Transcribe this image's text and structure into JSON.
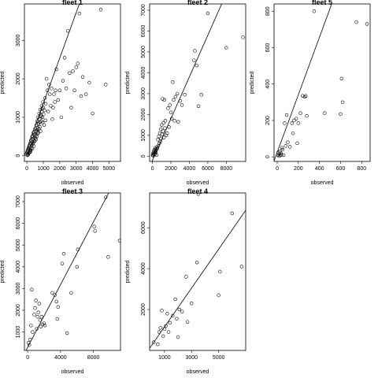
{
  "chart_data": [
    {
      "type": "scatter",
      "title": "fleet 1",
      "xlabel": "observed",
      "ylabel": "predicted",
      "xlim": [
        -150,
        5700
      ],
      "ylim": [
        -150,
        3950
      ],
      "xticks": [
        0,
        1000,
        2000,
        3000,
        4000,
        5000
      ],
      "yticks": [
        0,
        1000,
        2000,
        3000
      ],
      "fit_line": {
        "slope": 1.18,
        "intercept": 180
      },
      "points": [
        [
          20,
          10
        ],
        [
          40,
          50
        ],
        [
          60,
          120
        ],
        [
          80,
          30
        ],
        [
          100,
          200
        ],
        [
          120,
          80
        ],
        [
          150,
          250
        ],
        [
          180,
          150
        ],
        [
          200,
          300
        ],
        [
          220,
          100
        ],
        [
          250,
          400
        ],
        [
          280,
          200
        ],
        [
          300,
          350
        ],
        [
          320,
          500
        ],
        [
          350,
          300
        ],
        [
          380,
          450
        ],
        [
          400,
          600
        ],
        [
          420,
          250
        ],
        [
          450,
          550
        ],
        [
          480,
          380
        ],
        [
          500,
          700
        ],
        [
          520,
          450
        ],
        [
          550,
          650
        ],
        [
          580,
          800
        ],
        [
          600,
          500
        ],
        [
          620,
          900
        ],
        [
          650,
          720
        ],
        [
          680,
          1000
        ],
        [
          700,
          600
        ],
        [
          720,
          850
        ],
        [
          750,
          1100
        ],
        [
          780,
          950
        ],
        [
          800,
          750
        ],
        [
          820,
          1200
        ],
        [
          850,
          1050
        ],
        [
          880,
          900
        ],
        [
          900,
          1300
        ],
        [
          920,
          1150
        ],
        [
          950,
          1000
        ],
        [
          980,
          1400
        ],
        [
          1000,
          1250
        ],
        [
          1050,
          800
        ],
        [
          1100,
          1500
        ],
        [
          1150,
          1350
        ],
        [
          1200,
          2000
        ],
        [
          1250,
          1700
        ],
        [
          1300,
          1150
        ],
        [
          1350,
          1850
        ],
        [
          1400,
          1600
        ],
        [
          1450,
          1300
        ],
        [
          1500,
          1750
        ],
        [
          1550,
          950
        ],
        [
          1600,
          1250
        ],
        [
          1650,
          1600
        ],
        [
          1700,
          1400
        ],
        [
          1750,
          1700
        ],
        [
          1800,
          2250
        ],
        [
          1900,
          1450
        ],
        [
          2000,
          1700
        ],
        [
          2100,
          1000
        ],
        [
          2200,
          1950
        ],
        [
          2300,
          2550
        ],
        [
          2400,
          1750
        ],
        [
          2500,
          3250
        ],
        [
          2600,
          2150
        ],
        [
          2700,
          1250
        ],
        [
          2800,
          2200
        ],
        [
          2900,
          1700
        ],
        [
          3000,
          2300
        ],
        [
          3100,
          2400
        ],
        [
          3200,
          3700
        ],
        [
          3300,
          1550
        ],
        [
          3400,
          2050
        ],
        [
          3600,
          1600
        ],
        [
          3800,
          1900
        ],
        [
          4000,
          1100
        ],
        [
          4500,
          3800
        ],
        [
          4800,
          1850
        ],
        [
          30,
          80
        ],
        [
          60,
          20
        ],
        [
          90,
          160
        ],
        [
          110,
          60
        ],
        [
          140,
          180
        ],
        [
          170,
          90
        ],
        [
          190,
          220
        ],
        [
          230,
          140
        ],
        [
          260,
          320
        ],
        [
          290,
          260
        ],
        [
          330,
          180
        ],
        [
          360,
          420
        ],
        [
          390,
          340
        ],
        [
          430,
          380
        ],
        [
          460,
          480
        ],
        [
          490,
          560
        ],
        [
          530,
          520
        ],
        [
          560,
          420
        ],
        [
          590,
          620
        ],
        [
          630,
          680
        ],
        [
          660,
          580
        ],
        [
          700,
          820
        ],
        [
          740,
          700
        ],
        [
          790,
          880
        ],
        [
          830,
          640
        ],
        [
          870,
          1020
        ],
        [
          930,
          1220
        ],
        [
          960,
          860
        ],
        [
          1020,
          1080
        ],
        [
          1080,
          1180
        ],
        [
          1130,
          920
        ]
      ]
    },
    {
      "type": "scatter",
      "title": "fleet 2",
      "xlabel": "observed",
      "ylabel": "predicted",
      "xlim": [
        -300,
        10100
      ],
      "ylim": [
        -250,
        7300
      ],
      "xticks": [
        0,
        2000,
        4000,
        6000,
        8000
      ],
      "yticks": [
        0,
        1000,
        2000,
        3000,
        4000,
        5000,
        6000,
        7000
      ],
      "fit_line": {
        "slope": 1.0,
        "intercept": -200
      },
      "points": [
        [
          30,
          50
        ],
        [
          60,
          120
        ],
        [
          90,
          30
        ],
        [
          120,
          200
        ],
        [
          150,
          80
        ],
        [
          180,
          260
        ],
        [
          210,
          150
        ],
        [
          240,
          320
        ],
        [
          270,
          100
        ],
        [
          300,
          400
        ],
        [
          330,
          220
        ],
        [
          360,
          180
        ],
        [
          390,
          280
        ],
        [
          420,
          350
        ],
        [
          450,
          60
        ],
        [
          500,
          450
        ],
        [
          550,
          380
        ],
        [
          600,
          800
        ],
        [
          650,
          500
        ],
        [
          700,
          950
        ],
        [
          750,
          620
        ],
        [
          800,
          1100
        ],
        [
          850,
          700
        ],
        [
          900,
          1300
        ],
        [
          950,
          850
        ],
        [
          1000,
          1500
        ],
        [
          1050,
          1050
        ],
        [
          1100,
          2750
        ],
        [
          1150,
          1200
        ],
        [
          1200,
          1600
        ],
        [
          1250,
          900
        ],
        [
          1300,
          2700
        ],
        [
          1350,
          1350
        ],
        [
          1400,
          1700
        ],
        [
          1500,
          1000
        ],
        [
          1600,
          1100
        ],
        [
          1700,
          2300
        ],
        [
          1800,
          1400
        ],
        [
          1900,
          2450
        ],
        [
          2000,
          2100
        ],
        [
          2100,
          1800
        ],
        [
          2200,
          3550
        ],
        [
          2300,
          2700
        ],
        [
          2400,
          1700
        ],
        [
          2500,
          2850
        ],
        [
          2700,
          3000
        ],
        [
          2800,
          1650
        ],
        [
          3000,
          2650
        ],
        [
          3200,
          2450
        ],
        [
          3500,
          2950
        ],
        [
          4500,
          4600
        ],
        [
          4600,
          5050
        ],
        [
          4800,
          4350
        ],
        [
          5000,
          2400
        ],
        [
          5300,
          2950
        ],
        [
          6000,
          6850
        ],
        [
          8000,
          5200
        ],
        [
          9800,
          5700
        ]
      ]
    },
    {
      "type": "scatter",
      "title": "fleet 5",
      "xlabel": "observed",
      "ylabel": "predicted",
      "xlim": [
        -30,
        880
      ],
      "ylim": [
        -25,
        840
      ],
      "xticks": [
        0,
        200,
        400,
        600,
        800
      ],
      "yticks": [
        0,
        200,
        400,
        600,
        800
      ],
      "fit_line": {
        "slope": 1.58,
        "intercept": 25
      },
      "points": [
        [
          5,
          10
        ],
        [
          10,
          25
        ],
        [
          15,
          5
        ],
        [
          20,
          15
        ],
        [
          25,
          30
        ],
        [
          30,
          8
        ],
        [
          35,
          20
        ],
        [
          40,
          12
        ],
        [
          45,
          50
        ],
        [
          50,
          40
        ],
        [
          60,
          10
        ],
        [
          70,
          185
        ],
        [
          80,
          60
        ],
        [
          90,
          230
        ],
        [
          100,
          80
        ],
        [
          120,
          55
        ],
        [
          140,
          185
        ],
        [
          150,
          130
        ],
        [
          160,
          200
        ],
        [
          180,
          210
        ],
        [
          190,
          75
        ],
        [
          200,
          185
        ],
        [
          220,
          240
        ],
        [
          240,
          335
        ],
        [
          260,
          330
        ],
        [
          270,
          335
        ],
        [
          280,
          225
        ],
        [
          350,
          800
        ],
        [
          450,
          240
        ],
        [
          600,
          235
        ],
        [
          610,
          430
        ],
        [
          620,
          300
        ],
        [
          750,
          740
        ],
        [
          850,
          730
        ]
      ]
    },
    {
      "type": "scatter",
      "title": "fleet 3",
      "xlabel": "observed",
      "ylabel": "predicted",
      "xlim": [
        -400,
        11300
      ],
      "ylim": [
        150,
        7400
      ],
      "xticks": [
        0,
        4000,
        8000
      ],
      "yticks": [
        1000,
        2000,
        3000,
        4000,
        5000,
        6000,
        7000
      ],
      "fit_line": {
        "slope": 0.72,
        "intercept": 300
      },
      "points": [
        [
          100,
          500
        ],
        [
          200,
          400
        ],
        [
          300,
          650
        ],
        [
          400,
          1300
        ],
        [
          500,
          2950
        ],
        [
          600,
          1000
        ],
        [
          800,
          1800
        ],
        [
          900,
          2100
        ],
        [
          1000,
          2450
        ],
        [
          1100,
          1150
        ],
        [
          1200,
          1700
        ],
        [
          1300,
          1900
        ],
        [
          1400,
          2300
        ],
        [
          1500,
          1550
        ],
        [
          1600,
          1250
        ],
        [
          1700,
          1700
        ],
        [
          1800,
          1350
        ],
        [
          2000,
          1400
        ],
        [
          2100,
          1300
        ],
        [
          3000,
          2800
        ],
        [
          3300,
          2700
        ],
        [
          3500,
          2400
        ],
        [
          3600,
          1600
        ],
        [
          3700,
          2150
        ],
        [
          4200,
          4150
        ],
        [
          4400,
          4600
        ],
        [
          4800,
          950
        ],
        [
          5300,
          2800
        ],
        [
          6000,
          4000
        ],
        [
          6100,
          4800
        ],
        [
          8100,
          5850
        ],
        [
          8200,
          5650
        ],
        [
          9500,
          7200
        ],
        [
          9800,
          4450
        ],
        [
          11200,
          5200
        ]
      ]
    },
    {
      "type": "scatter",
      "title": "fleet 4",
      "xlabel": "observed",
      "ylabel": "predicted",
      "xlim": [
        -100,
        7000
      ],
      "ylim": [
        0,
        7700
      ],
      "xticks": [
        1000,
        3000,
        5000
      ],
      "yticks": [
        2000,
        4000,
        6000
      ],
      "fit_line": {
        "slope": 0.95,
        "intercept": 200
      },
      "points": [
        [
          200,
          400
        ],
        [
          500,
          300
        ],
        [
          600,
          900
        ],
        [
          700,
          1100
        ],
        [
          800,
          1950
        ],
        [
          900,
          700
        ],
        [
          1000,
          1050
        ],
        [
          1100,
          1200
        ],
        [
          1200,
          1800
        ],
        [
          1300,
          900
        ],
        [
          1400,
          1350
        ],
        [
          1600,
          1700
        ],
        [
          1800,
          2500
        ],
        [
          1900,
          1550
        ],
        [
          2000,
          650
        ],
        [
          2100,
          2000
        ],
        [
          2300,
          1900
        ],
        [
          2600,
          3600
        ],
        [
          2700,
          1400
        ],
        [
          3000,
          2300
        ],
        [
          3400,
          4300
        ],
        [
          3500,
          7650
        ],
        [
          5000,
          2700
        ],
        [
          5100,
          3850
        ],
        [
          6000,
          6700
        ],
        [
          6700,
          4100
        ]
      ]
    }
  ]
}
